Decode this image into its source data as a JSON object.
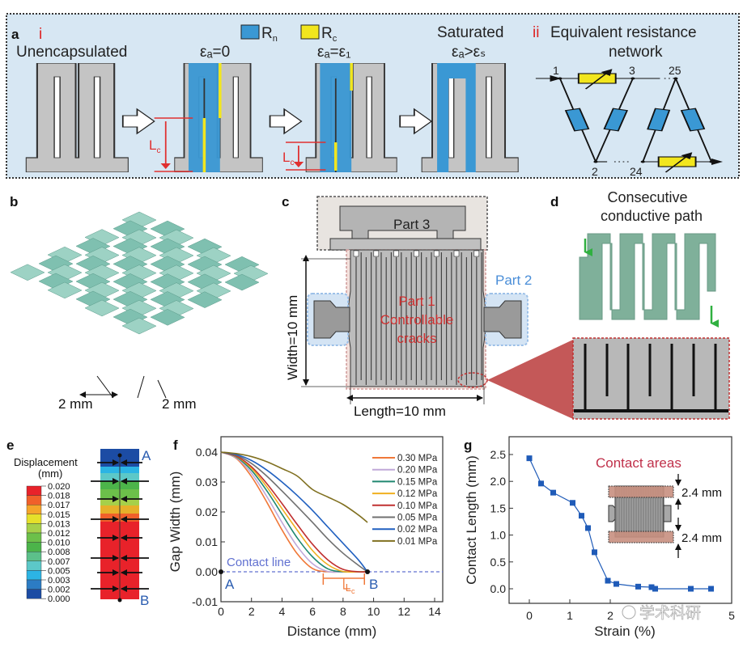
{
  "panel_a": {
    "label": "a",
    "sub_i": "i",
    "sub_ii": "ii",
    "unencapsulated": "Unencapsulated",
    "legend": [
      {
        "main": "R",
        "sub": "n",
        "color": "#3a98d4"
      },
      {
        "main": "R",
        "sub": "c",
        "color": "#f2e61e"
      }
    ],
    "states": [
      "εₐ=0",
      "εₐ=ε₁",
      "εₐ>εₛ"
    ],
    "saturated": "Saturated",
    "network_title_1": "Equivalent resistance",
    "network_title_2": "network",
    "lc": {
      "main": "L",
      "sub": "c"
    },
    "nodes": [
      "1",
      "3",
      "25",
      "2",
      "24"
    ],
    "ellipsis": "···"
  },
  "panel_b": {
    "label": "b",
    "dim_left": "2 mm",
    "dim_right": "2 mm"
  },
  "panel_c": {
    "label": "c",
    "part3": "Part 3",
    "part2": "Part 2",
    "part1_line1": "Part 1",
    "part1_line2": "Controllable",
    "part1_line3": "cracks",
    "width": "Width=10 mm",
    "length": "Length=10 mm"
  },
  "panel_d": {
    "label": "d",
    "title_1": "Consecutive",
    "title_2": "conductive path"
  },
  "panel_e": {
    "label": "e",
    "legend_title_1": "Displacement",
    "legend_title_2": "(mm)",
    "scale": [
      "0.020",
      "0.018",
      "0.017",
      "0.015",
      "0.013",
      "0.012",
      "0.010",
      "0.008",
      "0.007",
      "0.005",
      "0.003",
      "0.002",
      "0.000"
    ],
    "colors": [
      "#e8222a",
      "#f0602a",
      "#f5a52a",
      "#e6e02a",
      "#a6d04a",
      "#6cc04a",
      "#4cb44a",
      "#5cc08a",
      "#5cc8c8",
      "#2cb4e4",
      "#2c7cc4",
      "#1c4ca4"
    ],
    "point_a": "A",
    "point_b": "B"
  },
  "chart_data": [
    {
      "type": "line",
      "panel_label": "f",
      "xlabel": "Distance (mm)",
      "ylabel": "Gap Width (mm)",
      "xlim": [
        0,
        14.5
      ],
      "ylim": [
        -0.01,
        0.045
      ],
      "xticks": [
        "0",
        "2",
        "4",
        "6",
        "8",
        "10",
        "12",
        "14"
      ],
      "yticks": [
        "-0.01",
        "0.00",
        "0.01",
        "0.02",
        "0.03",
        "0.04"
      ],
      "x": [
        0,
        1,
        2,
        3,
        4,
        5,
        6,
        7,
        8,
        9,
        9.6
      ],
      "series": [
        {
          "name": "0.30 MPa",
          "color": "#f07838",
          "values": [
            0.04,
            0.0379,
            0.0318,
            0.0233,
            0.014,
            0.006,
            0.0011,
            0,
            0,
            0,
            0
          ]
        },
        {
          "name": "0.20 MPa",
          "color": "#c0a8d8",
          "values": [
            0.04,
            0.0381,
            0.0329,
            0.0252,
            0.0165,
            0.0085,
            0.0027,
            0.0001,
            0,
            0,
            0
          ]
        },
        {
          "name": "0.15 MPa",
          "color": "#208870",
          "values": [
            0.04,
            0.0384,
            0.0339,
            0.0271,
            0.0192,
            0.0113,
            0.005,
            0.001,
            0,
            0,
            0
          ]
        },
        {
          "name": "0.12 MPa",
          "color": "#f0b020",
          "values": [
            0.04,
            0.0386,
            0.0346,
            0.0284,
            0.0211,
            0.0139,
            0.0071,
            0.0024,
            0.0001,
            0,
            0
          ]
        },
        {
          "name": "0.10 MPa",
          "color": "#c03030",
          "values": [
            0.04,
            0.0387,
            0.0351,
            0.0295,
            0.0228,
            0.0158,
            0.0092,
            0.004,
            0.0008,
            0,
            0
          ]
        },
        {
          "name": "0.05 MPa",
          "color": "#707070",
          "values": [
            0.04,
            0.039,
            0.0362,
            0.032,
            0.027,
            0.0218,
            0.0165,
            0.011,
            0.0062,
            0.0022,
            0
          ]
        },
        {
          "name": "0.02 MPa",
          "color": "#2060c0",
          "values": [
            0.04,
            0.0392,
            0.0372,
            0.034,
            0.03,
            0.0255,
            0.0205,
            0.015,
            0.0095,
            0.004,
            0
          ]
        },
        {
          "name": "0.01 MPa",
          "color": "#807020",
          "values": [
            0.04,
            0.0395,
            0.0385,
            0.0368,
            0.0345,
            0.032,
            0.0275,
            0.025,
            0.0225,
            0.019,
            0.0165
          ]
        }
      ],
      "contact_line_label": "Contact line",
      "point_a": "A",
      "point_b": "B",
      "lc": {
        "main": "L",
        "sub": "c"
      },
      "lc_range": [
        6.7,
        9.4
      ]
    },
    {
      "type": "line",
      "panel_label": "g",
      "xlabel": "Strain (%)",
      "ylabel": "Contact Length (mm)",
      "xlim": [
        -0.5,
        5
      ],
      "ylim": [
        -0.25,
        2.75
      ],
      "xticks": [
        "0",
        "1",
        "2",
        "5"
      ],
      "yticks": [
        "0.0",
        "0.5",
        "1.0",
        "1.5",
        "2.0",
        "2.5"
      ],
      "x": [
        0,
        0.29,
        0.59,
        1.07,
        1.29,
        1.45,
        1.61,
        1.94,
        2.15,
        2.69,
        3.02,
        3.11,
        3.99,
        4.49
      ],
      "values": [
        2.43,
        1.96,
        1.79,
        1.6,
        1.36,
        1.13,
        0.68,
        0.15,
        0.09,
        0.04,
        0.03,
        0.0,
        0.0,
        0.0
      ],
      "color": "#1f5bb8",
      "inset_title": "Contact areas",
      "inset_dim_top": "2.4 mm",
      "inset_dim_bottom": "2.4 mm"
    }
  ],
  "watermark": "学术科研"
}
